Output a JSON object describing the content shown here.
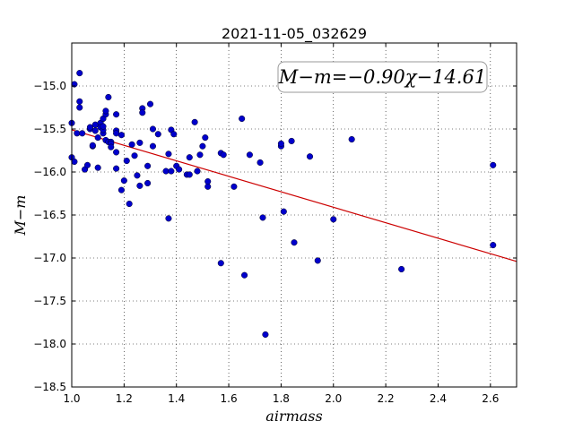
{
  "chart_data": {
    "type": "scatter",
    "title": "2021-11-05_032629",
    "xlabel": "airmass",
    "ylabel": "M−m",
    "annotation": "M−m=−0.90χ−14.61",
    "xlim": [
      1.0,
      2.7
    ],
    "ylim": [
      -18.5,
      -14.5
    ],
    "ylim_inverted": true,
    "grid": true,
    "xticks": [
      1.0,
      1.2,
      1.4,
      1.6,
      1.8,
      2.0,
      2.2,
      2.4,
      2.6
    ],
    "xtick_labels": [
      "1.0",
      "1.2",
      "1.4",
      "1.6",
      "1.8",
      "2.0",
      "2.2",
      "2.4",
      "2.6"
    ],
    "yticks": [
      -15.0,
      -15.5,
      -16.0,
      -16.5,
      -17.0,
      -17.5,
      -18.0,
      -18.5
    ],
    "ytick_labels": [
      "−15.0",
      "−15.5",
      "−16.0",
      "−16.5",
      "−17.0",
      "−17.5",
      "−18.0",
      "−18.5"
    ],
    "marker_color": "#0000cc",
    "fit_line": {
      "slope": -0.9,
      "intercept": -14.61,
      "color": "#cc0000"
    },
    "points": [
      [
        1.0,
        -15.43
      ],
      [
        1.0,
        -15.83
      ],
      [
        1.01,
        -15.88
      ],
      [
        1.01,
        -14.98
      ],
      [
        1.02,
        -15.55
      ],
      [
        1.03,
        -14.85
      ],
      [
        1.03,
        -15.18
      ],
      [
        1.03,
        -15.25
      ],
      [
        1.04,
        -15.55
      ],
      [
        1.05,
        -15.97
      ],
      [
        1.06,
        -15.92
      ],
      [
        1.07,
        -15.5
      ],
      [
        1.07,
        -15.48
      ],
      [
        1.08,
        -15.7
      ],
      [
        1.08,
        -15.69
      ],
      [
        1.09,
        -15.45
      ],
      [
        1.09,
        -15.52
      ],
      [
        1.1,
        -15.95
      ],
      [
        1.1,
        -15.6
      ],
      [
        1.11,
        -15.43
      ],
      [
        1.11,
        -15.48
      ],
      [
        1.12,
        -15.55
      ],
      [
        1.12,
        -15.51
      ],
      [
        1.12,
        -15.38
      ],
      [
        1.12,
        -15.47
      ],
      [
        1.13,
        -15.63
      ],
      [
        1.13,
        -15.33
      ],
      [
        1.13,
        -15.29
      ],
      [
        1.14,
        -15.13
      ],
      [
        1.14,
        -15.65
      ],
      [
        1.15,
        -15.65
      ],
      [
        1.15,
        -15.67
      ],
      [
        1.15,
        -15.71
      ],
      [
        1.17,
        -15.33
      ],
      [
        1.17,
        -15.52
      ],
      [
        1.17,
        -15.55
      ],
      [
        1.17,
        -15.77
      ],
      [
        1.17,
        -15.96
      ],
      [
        1.19,
        -16.21
      ],
      [
        1.19,
        -15.57
      ],
      [
        1.2,
        -16.1
      ],
      [
        1.21,
        -15.87
      ],
      [
        1.22,
        -16.37
      ],
      [
        1.23,
        -15.68
      ],
      [
        1.24,
        -15.81
      ],
      [
        1.25,
        -16.04
      ],
      [
        1.26,
        -16.16
      ],
      [
        1.26,
        -15.66
      ],
      [
        1.27,
        -15.26
      ],
      [
        1.27,
        -15.31
      ],
      [
        1.29,
        -15.93
      ],
      [
        1.29,
        -16.13
      ],
      [
        1.3,
        -15.21
      ],
      [
        1.31,
        -15.5
      ],
      [
        1.31,
        -15.7
      ],
      [
        1.33,
        -15.56
      ],
      [
        1.36,
        -15.99
      ],
      [
        1.37,
        -16.54
      ],
      [
        1.37,
        -15.79
      ],
      [
        1.38,
        -15.51
      ],
      [
        1.38,
        -15.99
      ],
      [
        1.39,
        -15.56
      ],
      [
        1.4,
        -15.93
      ],
      [
        1.41,
        -15.97
      ],
      [
        1.44,
        -16.03
      ],
      [
        1.45,
        -15.83
      ],
      [
        1.45,
        -16.03
      ],
      [
        1.47,
        -15.42
      ],
      [
        1.48,
        -15.99
      ],
      [
        1.49,
        -15.8
      ],
      [
        1.5,
        -15.7
      ],
      [
        1.51,
        -15.6
      ],
      [
        1.52,
        -16.17
      ],
      [
        1.52,
        -16.11
      ],
      [
        1.57,
        -17.06
      ],
      [
        1.57,
        -15.78
      ],
      [
        1.58,
        -15.8
      ],
      [
        1.62,
        -16.17
      ],
      [
        1.65,
        -15.38
      ],
      [
        1.66,
        -17.2
      ],
      [
        1.68,
        -15.8
      ],
      [
        1.72,
        -15.89
      ],
      [
        1.73,
        -16.53
      ],
      [
        1.74,
        -17.89
      ],
      [
        1.8,
        -15.7
      ],
      [
        1.8,
        -15.67
      ],
      [
        1.81,
        -16.46
      ],
      [
        1.84,
        -15.64
      ],
      [
        1.85,
        -16.82
      ],
      [
        1.91,
        -15.82
      ],
      [
        1.94,
        -17.03
      ],
      [
        2.0,
        -16.55
      ],
      [
        2.07,
        -15.62
      ],
      [
        2.26,
        -17.13
      ],
      [
        2.61,
        -15.92
      ],
      [
        2.61,
        -16.85
      ]
    ]
  }
}
